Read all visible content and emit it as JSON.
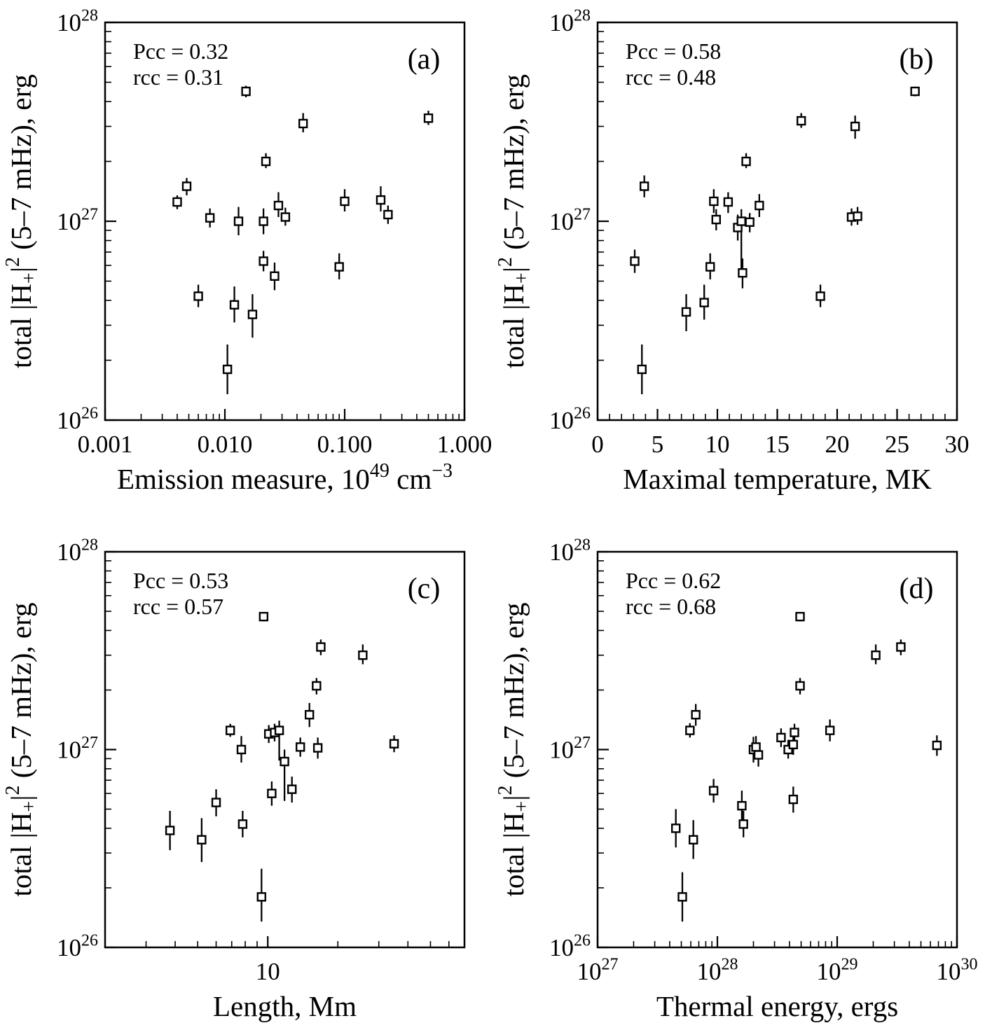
{
  "figure": {
    "background": "#ffffff",
    "ink": "#000000",
    "marker": "open-square"
  },
  "chart_data_shared": {
    "ylabel": "total |H+|^2 (5-7 mHz), erg",
    "yscale": "log",
    "ylim": [
      1e+26,
      1e+28
    ],
    "ylabel_parts": [
      {
        "t": "total |H"
      },
      {
        "t": "+",
        "sub": true
      },
      {
        "t": "|"
      },
      {
        "t": "2",
        "sup": true
      },
      {
        "t": " (5–7 mHz), erg"
      }
    ],
    "y_ticks": [
      {
        "v": 1e+26,
        "label": [
          {
            "t": "10"
          },
          {
            "t": "26",
            "sup": true
          }
        ]
      },
      {
        "v": 1e+27,
        "label": [
          {
            "t": "10"
          },
          {
            "t": "27",
            "sup": true
          }
        ]
      },
      {
        "v": 1e+28,
        "label": [
          {
            "t": "10"
          },
          {
            "t": "28",
            "sup": true
          }
        ]
      }
    ]
  },
  "chart_data": [
    {
      "type": "scatter",
      "panel_label": "(a)",
      "pcc": 0.32,
      "rcc": 0.31,
      "annotations": [
        "Pcc = 0.32",
        "rcc = 0.31"
      ],
      "xlabel": "Emission measure, 10^49 cm^-3",
      "xlabel_parts": [
        {
          "t": "Emission measure, 10"
        },
        {
          "t": "49",
          "sup": true
        },
        {
          "t": " cm"
        },
        {
          "t": "−3",
          "sup": true
        }
      ],
      "xscale": "log",
      "xlim": [
        0.001,
        1.0
      ],
      "x_ticks": [
        {
          "v": 0.001,
          "label": [
            {
              "t": "0.001"
            }
          ]
        },
        {
          "v": 0.01,
          "label": [
            {
              "t": "0.010"
            }
          ]
        },
        {
          "v": 0.1,
          "label": [
            {
              "t": "0.100"
            }
          ]
        },
        {
          "v": 1.0,
          "label": [
            {
              "t": "1.000"
            }
          ]
        }
      ],
      "points": [
        {
          "x": 0.015,
          "y": 4.5e+27,
          "lo": 4.2e+27,
          "hi": 4.8e+27
        },
        {
          "x": 0.045,
          "y": 3.1e+27,
          "lo": 2.8e+27,
          "hi": 3.5e+27
        },
        {
          "x": 0.5,
          "y": 3.3e+27,
          "lo": 3.05e+27,
          "hi": 3.6e+27
        },
        {
          "x": 0.022,
          "y": 2e+27,
          "lo": 1.85e+27,
          "hi": 2.2e+27
        },
        {
          "x": 0.0048,
          "y": 1.5e+27,
          "lo": 1.35e+27,
          "hi": 1.65e+27
        },
        {
          "x": 0.004,
          "y": 1.25e+27,
          "lo": 1.15e+27,
          "hi": 1.35e+27
        },
        {
          "x": 0.1,
          "y": 1.26e+27,
          "lo": 1.12e+27,
          "hi": 1.45e+27
        },
        {
          "x": 0.2,
          "y": 1.28e+27,
          "lo": 1.12e+27,
          "hi": 1.5e+27
        },
        {
          "x": 0.028,
          "y": 1.2e+27,
          "lo": 1.05e+27,
          "hi": 1.4e+27
        },
        {
          "x": 0.0075,
          "y": 1.04e+27,
          "lo": 9.3e+26,
          "hi": 1.16e+27
        },
        {
          "x": 0.032,
          "y": 1.05e+27,
          "lo": 9.5e+26,
          "hi": 1.17e+27
        },
        {
          "x": 0.23,
          "y": 1.08e+27,
          "lo": 9.7e+26,
          "hi": 1.2e+27
        },
        {
          "x": 0.013,
          "y": 1e+27,
          "lo": 8.5e+26,
          "hi": 1.18e+27
        },
        {
          "x": 0.021,
          "y": 1e+27,
          "lo": 8.6e+26,
          "hi": 1.16e+27
        },
        {
          "x": 0.021,
          "y": 6.3e+26,
          "lo": 5.6e+26,
          "hi": 7.1e+26
        },
        {
          "x": 0.09,
          "y": 5.9e+26,
          "lo": 5.1e+26,
          "hi": 6.9e+26
        },
        {
          "x": 0.026,
          "y": 5.3e+26,
          "lo": 4.5e+26,
          "hi": 6.2e+26
        },
        {
          "x": 0.006,
          "y": 4.2e+26,
          "lo": 3.7e+26,
          "hi": 4.8e+26
        },
        {
          "x": 0.012,
          "y": 3.8e+26,
          "lo": 3.1e+26,
          "hi": 4.7e+26
        },
        {
          "x": 0.017,
          "y": 3.4e+26,
          "lo": 2.6e+26,
          "hi": 4.3e+26
        },
        {
          "x": 0.0105,
          "y": 1.8e+26,
          "lo": 1.35e+26,
          "hi": 2.4e+26
        }
      ]
    },
    {
      "type": "scatter",
      "panel_label": "(b)",
      "pcc": 0.58,
      "rcc": 0.48,
      "annotations": [
        "Pcc = 0.58",
        "rcc = 0.48"
      ],
      "xlabel": "Maximal temperature, MK",
      "xlabel_parts": [
        {
          "t": "Maximal temperature, MK"
        }
      ],
      "xscale": "linear",
      "xlim": [
        0,
        30
      ],
      "x_major_step": 5,
      "x_minor_step": 1,
      "x_ticks": [
        {
          "v": 0,
          "label": [
            {
              "t": "0"
            }
          ]
        },
        {
          "v": 5,
          "label": [
            {
              "t": "5"
            }
          ]
        },
        {
          "v": 10,
          "label": [
            {
              "t": "10"
            }
          ]
        },
        {
          "v": 15,
          "label": [
            {
              "t": "15"
            }
          ]
        },
        {
          "v": 20,
          "label": [
            {
              "t": "20"
            }
          ]
        },
        {
          "v": 25,
          "label": [
            {
              "t": "25"
            }
          ]
        },
        {
          "v": 30,
          "label": [
            {
              "t": "30"
            }
          ]
        }
      ],
      "points": [
        {
          "x": 3.1,
          "y": 6.3e+26,
          "lo": 5.5e+26,
          "hi": 7.2e+26
        },
        {
          "x": 3.9,
          "y": 1.5e+27,
          "lo": 1.32e+27,
          "hi": 1.7e+27
        },
        {
          "x": 3.7,
          "y": 1.8e+26,
          "lo": 1.35e+26,
          "hi": 2.4e+26
        },
        {
          "x": 7.4,
          "y": 3.5e+26,
          "lo": 2.8e+26,
          "hi": 4.3e+26
        },
        {
          "x": 8.9,
          "y": 3.9e+26,
          "lo": 3.2e+26,
          "hi": 4.8e+26
        },
        {
          "x": 9.4,
          "y": 5.9e+26,
          "lo": 5.1e+26,
          "hi": 6.9e+26
        },
        {
          "x": 9.7,
          "y": 1.26e+27,
          "lo": 1.1e+27,
          "hi": 1.45e+27
        },
        {
          "x": 9.9,
          "y": 1.02e+27,
          "lo": 9e+26,
          "hi": 1.15e+27
        },
        {
          "x": 10.9,
          "y": 1.25e+27,
          "lo": 1.1e+27,
          "hi": 1.4e+27
        },
        {
          "x": 11.7,
          "y": 9.3e+26,
          "lo": 8e+26,
          "hi": 1.08e+27
        },
        {
          "x": 12.0,
          "y": 1e+27,
          "lo": 5.5e+26,
          "hi": 1.15e+27
        },
        {
          "x": 12.1,
          "y": 5.5e+26,
          "lo": 4.6e+26,
          "hi": 6.5e+26
        },
        {
          "x": 12.4,
          "y": 2e+27,
          "lo": 1.85e+27,
          "hi": 2.2e+27
        },
        {
          "x": 12.7,
          "y": 9.9e+26,
          "lo": 8.8e+26,
          "hi": 1.1e+27
        },
        {
          "x": 13.5,
          "y": 1.2e+27,
          "lo": 1.05e+27,
          "hi": 1.37e+27
        },
        {
          "x": 17.0,
          "y": 3.2e+27,
          "lo": 2.95e+27,
          "hi": 3.5e+27
        },
        {
          "x": 18.6,
          "y": 4.2e+26,
          "lo": 3.7e+26,
          "hi": 4.8e+26
        },
        {
          "x": 21.2,
          "y": 1.05e+27,
          "lo": 9.5e+26,
          "hi": 1.16e+27
        },
        {
          "x": 21.7,
          "y": 1.06e+27,
          "lo": 9.6e+26,
          "hi": 1.18e+27
        },
        {
          "x": 21.5,
          "y": 3e+27,
          "lo": 2.6e+27,
          "hi": 3.4e+27
        },
        {
          "x": 26.5,
          "y": 4.5e+27,
          "lo": 4.25e+27,
          "hi": 4.75e+27
        }
      ]
    },
    {
      "type": "scatter",
      "panel_label": "(c)",
      "pcc": 0.53,
      "rcc": 0.57,
      "annotations": [
        "Pcc = 0.53",
        "rcc = 0.57"
      ],
      "xlabel": "Length, Mm",
      "xlabel_parts": [
        {
          "t": "Length, Mm"
        }
      ],
      "xscale": "log",
      "xlim": [
        2,
        70
      ],
      "x_ticks": [
        {
          "v": 10,
          "label": [
            {
              "t": "10"
            }
          ]
        }
      ],
      "points": [
        {
          "x": 3.8,
          "y": 3.9e+26,
          "lo": 3.1e+26,
          "hi": 4.9e+26
        },
        {
          "x": 5.2,
          "y": 3.5e+26,
          "lo": 2.7e+26,
          "hi": 4.5e+26
        },
        {
          "x": 6.0,
          "y": 5.4e+26,
          "lo": 4.6e+26,
          "hi": 6.3e+26
        },
        {
          "x": 6.9,
          "y": 1.25e+27,
          "lo": 1.16e+27,
          "hi": 1.35e+27
        },
        {
          "x": 7.7,
          "y": 1e+27,
          "lo": 8.6e+26,
          "hi": 1.17e+27
        },
        {
          "x": 7.8,
          "y": 4.2e+26,
          "lo": 3.6e+26,
          "hi": 4.9e+26
        },
        {
          "x": 9.4,
          "y": 1.8e+26,
          "lo": 1.35e+26,
          "hi": 2.5e+26
        },
        {
          "x": 9.6,
          "y": 4.7e+27,
          "lo": 4.45e+27,
          "hi": 4.95e+27
        },
        {
          "x": 10.1,
          "y": 1.2e+27,
          "lo": 1.08e+27,
          "hi": 1.33e+27
        },
        {
          "x": 10.4,
          "y": 6e+26,
          "lo": 5.2e+26,
          "hi": 6.9e+26
        },
        {
          "x": 10.7,
          "y": 1.22e+27,
          "lo": 1.1e+27,
          "hi": 1.35e+27
        },
        {
          "x": 11.2,
          "y": 1.25e+27,
          "lo": 8.8e+26,
          "hi": 1.4e+27
        },
        {
          "x": 11.8,
          "y": 8.7e+26,
          "lo": 5.5e+26,
          "hi": 1e+27
        },
        {
          "x": 12.7,
          "y": 6.3e+26,
          "lo": 5.4e+26,
          "hi": 7.3e+26
        },
        {
          "x": 13.8,
          "y": 1.03e+27,
          "lo": 9.2e+26,
          "hi": 1.15e+27
        },
        {
          "x": 15.1,
          "y": 1.5e+27,
          "lo": 1.3e+27,
          "hi": 1.72e+27
        },
        {
          "x": 16.2,
          "y": 2.1e+27,
          "lo": 1.9e+27,
          "hi": 2.3e+27
        },
        {
          "x": 16.4,
          "y": 1.02e+27,
          "lo": 9e+26,
          "hi": 1.15e+27
        },
        {
          "x": 16.9,
          "y": 3.3e+27,
          "lo": 3e+27,
          "hi": 3.6e+27
        },
        {
          "x": 25.6,
          "y": 3e+27,
          "lo": 2.7e+27,
          "hi": 3.4e+27
        },
        {
          "x": 34.9,
          "y": 1.07e+27,
          "lo": 9.7e+26,
          "hi": 1.18e+27
        }
      ]
    },
    {
      "type": "scatter",
      "panel_label": "(d)",
      "pcc": 0.62,
      "rcc": 0.68,
      "annotations": [
        "Pcc = 0.62",
        "rcc = 0.68"
      ],
      "xlabel": "Thermal energy, ergs",
      "xlabel_parts": [
        {
          "t": "Thermal energy, ergs"
        }
      ],
      "xscale": "log",
      "xlim": [
        1e+27,
        1e+30
      ],
      "x_ticks": [
        {
          "v": 1e+27,
          "label": [
            {
              "t": "10"
            },
            {
              "t": "27",
              "sup": true
            }
          ]
        },
        {
          "v": 1e+28,
          "label": [
            {
              "t": "10"
            },
            {
              "t": "28",
              "sup": true
            }
          ]
        },
        {
          "v": 1e+29,
          "label": [
            {
              "t": "10"
            },
            {
              "t": "29",
              "sup": true
            }
          ]
        },
        {
          "v": 1e+30,
          "label": [
            {
              "t": "10"
            },
            {
              "t": "30",
              "sup": true
            }
          ]
        }
      ],
      "points": [
        {
          "x": 4.5e+27,
          "y": 4e+26,
          "lo": 3.2e+26,
          "hi": 5e+26
        },
        {
          "x": 5.1e+27,
          "y": 1.8e+26,
          "lo": 1.35e+26,
          "hi": 2.4e+26
        },
        {
          "x": 5.9e+27,
          "y": 1.25e+27,
          "lo": 1.15e+27,
          "hi": 1.36e+27
        },
        {
          "x": 6.3e+27,
          "y": 3.5e+26,
          "lo": 2.8e+26,
          "hi": 4.4e+26
        },
        {
          "x": 6.6e+27,
          "y": 1.5e+27,
          "lo": 1.32e+27,
          "hi": 1.7e+27
        },
        {
          "x": 9.3e+27,
          "y": 6.2e+26,
          "lo": 5.4e+26,
          "hi": 7.1e+26
        },
        {
          "x": 1.6e+28,
          "y": 5.2e+26,
          "lo": 4.3e+26,
          "hi": 6.2e+26
        },
        {
          "x": 1.65e+28,
          "y": 4.2e+26,
          "lo": 3.6e+26,
          "hi": 4.9e+26
        },
        {
          "x": 2e+28,
          "y": 1e+27,
          "lo": 8.6e+26,
          "hi": 1.16e+27
        },
        {
          "x": 2.1e+28,
          "y": 1.03e+27,
          "lo": 9e+26,
          "hi": 1.17e+27
        },
        {
          "x": 2.2e+28,
          "y": 9.4e+26,
          "lo": 8.2e+26,
          "hi": 1.07e+27
        },
        {
          "x": 3.4e+28,
          "y": 1.15e+27,
          "lo": 1.03e+27,
          "hi": 1.28e+27
        },
        {
          "x": 3.9e+28,
          "y": 1e+27,
          "lo": 9e+26,
          "hi": 1.12e+27
        },
        {
          "x": 4.3e+28,
          "y": 1.06e+27,
          "lo": 9.4e+26,
          "hi": 1.19e+27
        },
        {
          "x": 4.4e+28,
          "y": 1.22e+27,
          "lo": 1.1e+27,
          "hi": 1.35e+27
        },
        {
          "x": 4.3e+28,
          "y": 5.6e+26,
          "lo": 4.8e+26,
          "hi": 6.5e+26
        },
        {
          "x": 4.9e+28,
          "y": 4.7e+27,
          "lo": 4.45e+27,
          "hi": 4.95e+27
        },
        {
          "x": 4.9e+28,
          "y": 2.1e+27,
          "lo": 1.9e+27,
          "hi": 2.3e+27
        },
        {
          "x": 8.7e+28,
          "y": 1.25e+27,
          "lo": 1.1e+27,
          "hi": 1.42e+27
        },
        {
          "x": 2.1e+29,
          "y": 3e+27,
          "lo": 2.7e+27,
          "hi": 3.4e+27
        },
        {
          "x": 3.4e+29,
          "y": 3.3e+27,
          "lo": 3e+27,
          "hi": 3.6e+27
        },
        {
          "x": 6.8e+29,
          "y": 1.05e+27,
          "lo": 9.3e+26,
          "hi": 1.18e+27
        }
      ]
    }
  ]
}
